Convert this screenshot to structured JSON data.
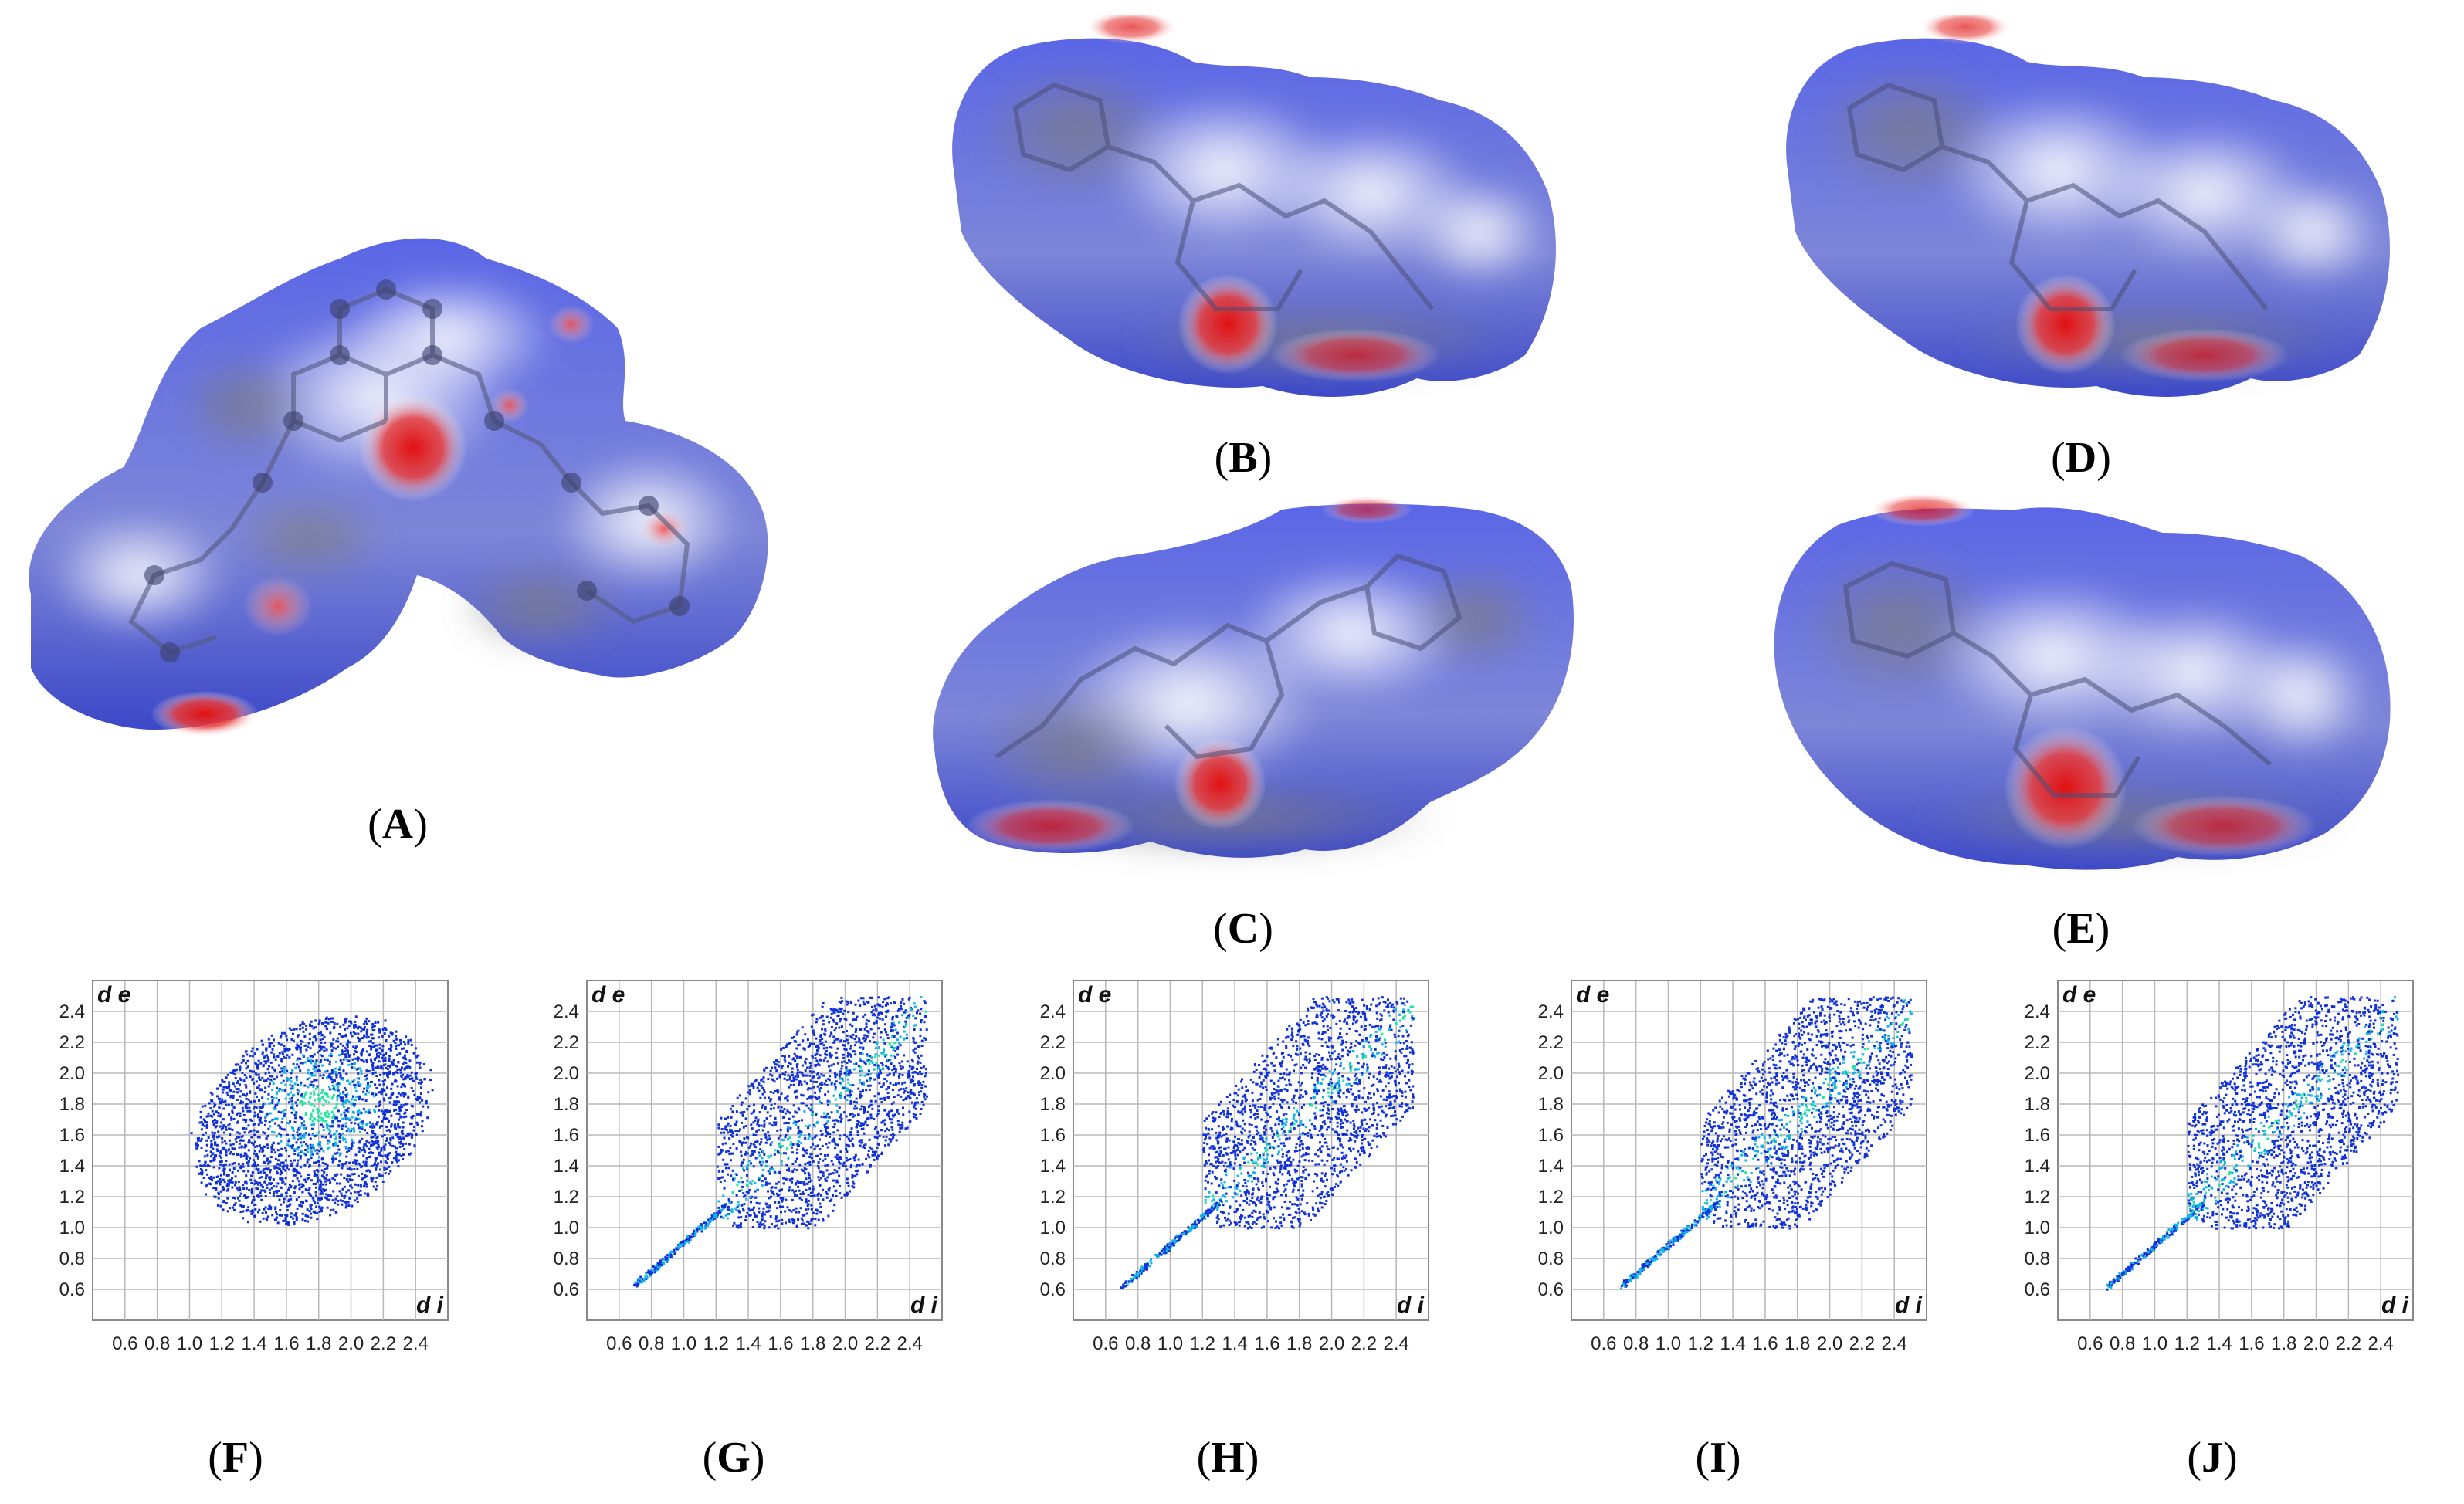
{
  "figure": {
    "panels": [
      {
        "id": "A",
        "type": "hirshfeld-surface"
      },
      {
        "id": "B",
        "type": "hirshfeld-surface"
      },
      {
        "id": "C",
        "type": "hirshfeld-surface"
      },
      {
        "id": "D",
        "type": "hirshfeld-surface"
      },
      {
        "id": "E",
        "type": "hirshfeld-surface"
      }
    ],
    "labels": {
      "A": "A",
      "B": "B",
      "C": "C",
      "D": "D",
      "E": "E",
      "F": "F",
      "G": "G",
      "H": "H",
      "I": "I",
      "J": "J"
    },
    "surface_colors": {
      "blue": "#2f3fd8",
      "white": "#f2f2f6",
      "red": "#d81818",
      "grey": "#8a8a92"
    }
  },
  "chart_data": [
    {
      "panel": "F",
      "type": "scatter",
      "x_ticks": [
        "0.6",
        "0.8",
        "1.0",
        "1.2",
        "1.4",
        "1.6",
        "1.8",
        "2.0",
        "2.2",
        "2.4"
      ],
      "y_ticks": [
        "0.6",
        "0.8",
        "1.0",
        "1.2",
        "1.4",
        "1.6",
        "1.8",
        "2.0",
        "2.2",
        "2.4"
      ],
      "xlabel": "d i",
      "ylabel": "d e",
      "xlim": [
        0.4,
        2.6
      ],
      "ylim": [
        0.4,
        2.6
      ],
      "grid": true,
      "point_colors": [
        "#1030d8",
        "#14b4e6",
        "#22e6a0"
      ],
      "region": {
        "x_min": 1.0,
        "x_max": 2.5,
        "y_min": 1.0,
        "y_max": 2.45,
        "hotspot": [
          1.8,
          1.8
        ]
      }
    },
    {
      "panel": "G",
      "type": "scatter",
      "x_ticks": [
        "0.6",
        "0.8",
        "1.0",
        "1.2",
        "1.4",
        "1.6",
        "1.8",
        "2.0",
        "2.2",
        "2.4"
      ],
      "y_ticks": [
        "0.6",
        "0.8",
        "1.0",
        "1.2",
        "1.4",
        "1.6",
        "1.8",
        "2.0",
        "2.2",
        "2.4"
      ],
      "xlabel": "d i",
      "ylabel": "d e",
      "xlim": [
        0.4,
        2.6
      ],
      "ylim": [
        0.4,
        2.6
      ],
      "grid": true,
      "point_colors": [
        "#1030d8",
        "#14b4e6",
        "#22e6a0"
      ],
      "region": {
        "x_min": 0.65,
        "x_max": 2.5,
        "y_min": 0.6,
        "y_max": 2.5,
        "spike_tip": [
          0.68,
          0.62
        ]
      }
    },
    {
      "panel": "H",
      "type": "scatter",
      "x_ticks": [
        "0.6",
        "0.8",
        "1.0",
        "1.2",
        "1.4",
        "1.6",
        "1.8",
        "2.0",
        "2.2",
        "2.4"
      ],
      "y_ticks": [
        "0.6",
        "0.8",
        "1.0",
        "1.2",
        "1.4",
        "1.6",
        "1.8",
        "2.0",
        "2.2",
        "2.4"
      ],
      "xlabel": "d i",
      "ylabel": "d e",
      "xlim": [
        0.4,
        2.6
      ],
      "ylim": [
        0.4,
        2.6
      ],
      "grid": true,
      "point_colors": [
        "#1030d8",
        "#14b4e6",
        "#22e6a0"
      ],
      "region": {
        "x_min": 0.7,
        "x_max": 2.5,
        "y_min": 0.62,
        "y_max": 2.5,
        "spike_tip": [
          0.7,
          0.62
        ]
      }
    },
    {
      "panel": "I",
      "type": "scatter",
      "x_ticks": [
        "0.6",
        "0.8",
        "1.0",
        "1.2",
        "1.4",
        "1.6",
        "1.8",
        "2.0",
        "2.2",
        "2.4"
      ],
      "y_ticks": [
        "0.6",
        "0.8",
        "1.0",
        "1.2",
        "1.4",
        "1.6",
        "1.8",
        "2.0",
        "2.2",
        "2.4"
      ],
      "xlabel": "d i",
      "ylabel": "d e",
      "xlim": [
        0.4,
        2.6
      ],
      "ylim": [
        0.4,
        2.6
      ],
      "grid": true,
      "point_colors": [
        "#1030d8",
        "#14b4e6",
        "#22e6a0"
      ],
      "region": {
        "x_min": 0.7,
        "x_max": 2.5,
        "y_min": 0.62,
        "y_max": 2.5,
        "spike_tip": [
          0.7,
          0.62
        ]
      }
    },
    {
      "panel": "J",
      "type": "scatter",
      "x_ticks": [
        "0.6",
        "0.8",
        "1.0",
        "1.2",
        "1.4",
        "1.6",
        "1.8",
        "2.0",
        "2.2",
        "2.4"
      ],
      "y_ticks": [
        "0.6",
        "0.8",
        "1.0",
        "1.2",
        "1.4",
        "1.6",
        "1.8",
        "2.0",
        "2.2",
        "2.4"
      ],
      "xlabel": "d i",
      "ylabel": "d e",
      "xlim": [
        0.4,
        2.6
      ],
      "ylim": [
        0.4,
        2.6
      ],
      "grid": true,
      "point_colors": [
        "#1030d8",
        "#14b4e6",
        "#22e6a0"
      ],
      "region": {
        "x_min": 0.7,
        "x_max": 2.5,
        "y_min": 0.62,
        "y_max": 2.5,
        "spike_tip": [
          0.7,
          0.62
        ]
      }
    }
  ]
}
